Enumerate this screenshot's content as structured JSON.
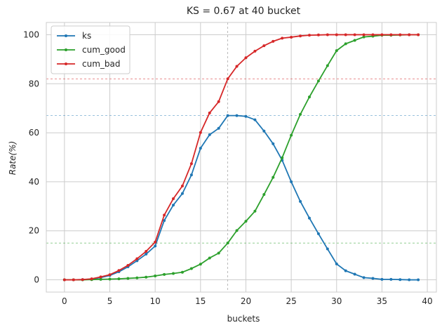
{
  "chart_data": {
    "type": "line",
    "title": "KS =  0.67 at 40 bucket",
    "xlabel": "buckets",
    "ylabel": "Rate(%)",
    "xlim": [
      -2,
      41
    ],
    "ylim": [
      -5,
      105
    ],
    "xticks": [
      0,
      5,
      10,
      15,
      20,
      25,
      30,
      35,
      40
    ],
    "yticks": [
      0,
      20,
      40,
      60,
      80,
      100
    ],
    "grid": true,
    "legend_position": "top-left",
    "x": [
      0,
      1,
      2,
      3,
      4,
      5,
      6,
      7,
      8,
      9,
      10,
      11,
      12,
      13,
      14,
      15,
      16,
      17,
      18,
      19,
      20,
      21,
      22,
      23,
      24,
      25,
      26,
      27,
      28,
      29,
      30,
      31,
      32,
      33,
      34,
      35,
      36,
      37,
      38,
      39
    ],
    "series": [
      {
        "name": "ks",
        "color": "#1f77b4",
        "values": [
          0,
          0,
          0.1,
          0.3,
          0.9,
          1.8,
          3.3,
          5.3,
          7.8,
          10.5,
          13.8,
          24.2,
          30.5,
          35.2,
          42.8,
          53.7,
          59.2,
          61.8,
          67.0,
          67.0,
          66.7,
          65.3,
          60.7,
          55.5,
          48.8,
          40.0,
          32.0,
          25.2,
          18.8,
          12.6,
          6.5,
          3.7,
          2.3,
          0.9,
          0.6,
          0.2,
          0.2,
          0.1,
          0.0,
          0.0
        ]
      },
      {
        "name": "cum_good",
        "color": "#2ca02c",
        "values": [
          0,
          0,
          0,
          0.1,
          0.2,
          0.3,
          0.4,
          0.6,
          0.8,
          1.1,
          1.6,
          2.2,
          2.6,
          3.1,
          4.6,
          6.4,
          8.9,
          10.9,
          15.0,
          20.1,
          23.9,
          28.0,
          34.8,
          41.8,
          49.8,
          59.0,
          67.5,
          74.6,
          81.1,
          87.4,
          93.5,
          96.3,
          97.7,
          99.1,
          99.4,
          99.8,
          99.8,
          99.9,
          100,
          100
        ]
      },
      {
        "name": "cum_bad",
        "color": "#d62728",
        "values": [
          0,
          0,
          0.1,
          0.4,
          1.2,
          2.1,
          3.8,
          5.9,
          8.6,
          11.6,
          15.4,
          26.4,
          33.1,
          38.3,
          47.4,
          60.1,
          68.1,
          72.7,
          82.0,
          87.1,
          90.6,
          93.3,
          95.5,
          97.3,
          98.6,
          99.0,
          99.5,
          99.8,
          99.9,
          100,
          100,
          100,
          100,
          100,
          100,
          100,
          100,
          100,
          100,
          100
        ]
      }
    ],
    "reference_lines": {
      "vertical_x": 18,
      "horizontal": [
        {
          "y": 82.0,
          "color": "#d62728"
        },
        {
          "y": 67.0,
          "color": "#1f77b4"
        },
        {
          "y": 15.0,
          "color": "#2ca02c"
        }
      ]
    },
    "colors": {
      "grid": "#cccccc",
      "spine": "#cccccc",
      "text": "#262626"
    }
  }
}
